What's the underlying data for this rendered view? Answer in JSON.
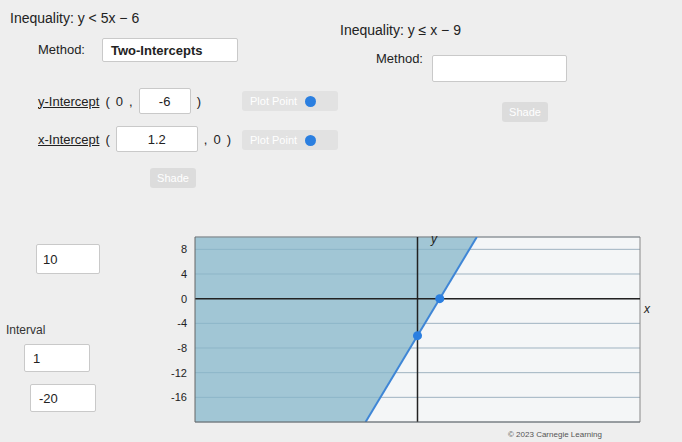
{
  "left_panel": {
    "inequality_label": "Inequality:",
    "inequality": "y < 5x − 6",
    "method_label": "Method:",
    "method": "Two-Intercepts",
    "y_intercept": {
      "label": "y-Intercept",
      "x": "0",
      "y": "-6",
      "button": "Plot Point"
    },
    "x_intercept": {
      "label": "x-Intercept",
      "x": "1.2",
      "y": "0",
      "button": "Plot Point"
    },
    "shade_button": "Shade"
  },
  "right_panel": {
    "inequality_label": "Inequality:",
    "inequality": "y ≤ x − 9",
    "method_label": "Method:",
    "shade_button": "Shade"
  },
  "punctuation": {
    "open": "(",
    "sep": ",",
    "close": ")"
  },
  "side_panel": {
    "max": "10",
    "interval_label": "Interval",
    "interval": "1",
    "min": "-20"
  },
  "chart_data": {
    "type": "line",
    "x_label": "x",
    "y_label": "y",
    "xlim": [
      -12,
      12
    ],
    "ylim": [
      -20,
      10
    ],
    "yticks": [
      8,
      4,
      0,
      -4,
      -8,
      -12,
      -16
    ],
    "grid": true,
    "tick_labels": "y",
    "series": [
      {
        "type": "area",
        "color": "#86b6c9",
        "x": [
          -12,
          -2.8,
          3.2
        ],
        "values": [
          -20,
          -20,
          10
        ]
      },
      {
        "type": "line",
        "color": "#3f86d6",
        "x": [
          -2.8,
          3.2
        ],
        "values": [
          -20,
          10
        ]
      },
      {
        "type": "scatter",
        "color": "#2b7fe0",
        "x": [
          0,
          1.2
        ],
        "values": [
          -6,
          0
        ]
      }
    ]
  },
  "footer": "© 2023 Carnegie Learning"
}
